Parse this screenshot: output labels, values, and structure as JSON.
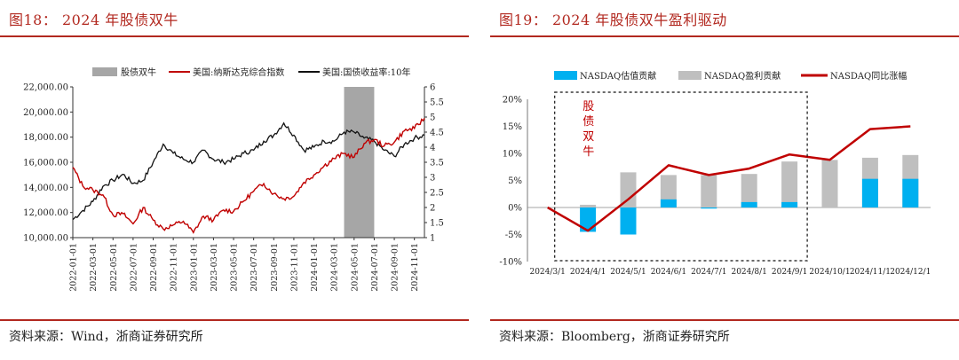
{
  "left": {
    "figure_title": "图18： 2024 年股债双牛",
    "source": "资料来源：Wind，浙商证券研究所",
    "legend": {
      "shade": "股债双牛",
      "nasdaq": "美国:纳斯达克综合指数",
      "treasury": "美国:国债收益率:10年"
    },
    "colors": {
      "nasdaq": "#c00000",
      "treasury": "#111111",
      "shade": "#a6a6a6"
    }
  },
  "right": {
    "figure_title": "图19： 2024 年股债双牛盈利驱动",
    "source": "资料来源：Bloomberg，浙商证券研究所",
    "legend": {
      "valuation": "NASDAQ估值贡献",
      "earnings": "NASDAQ盈利贡献",
      "yoy": "NASDAQ同比涨幅"
    },
    "annotation": "股债双牛",
    "colors": {
      "valuation": "#00b0f0",
      "earnings": "#bfbfbf",
      "yoy": "#c00000"
    }
  },
  "chart_data": [
    {
      "type": "line",
      "x_ticks": [
        "2022-01-01",
        "2022-03-01",
        "2022-05-01",
        "2022-07-01",
        "2022-09-01",
        "2022-11-01",
        "2023-01-01",
        "2023-03-01",
        "2023-05-01",
        "2023-07-01",
        "2023-09-01",
        "2023-11-01",
        "2024-01-01",
        "2024-03-01",
        "2024-05-01",
        "2024-07-01",
        "2024-09-01",
        "2024-11-01"
      ],
      "y_left_ticks": [
        "10,000.00",
        "12,000.00",
        "14,000.00",
        "16,000.00",
        "18,000.00",
        "20,000.00",
        "22,000.00"
      ],
      "y_left_range": [
        10000,
        22000
      ],
      "y_right_ticks": [
        "1",
        "1.5",
        "2",
        "2.5",
        "3",
        "3.5",
        "4",
        "4.5",
        "5",
        "5.5",
        "6"
      ],
      "y_right_range": [
        1,
        6
      ],
      "shaded_period": [
        "2024-04-01",
        "2024-07-01"
      ],
      "series": [
        {
          "name": "美国:纳斯达克综合指数",
          "axis": "left",
          "x": [
            "2022-01-01",
            "2022-02-01",
            "2022-03-01",
            "2022-04-01",
            "2022-05-01",
            "2022-06-01",
            "2022-07-01",
            "2022-08-01",
            "2022-09-01",
            "2022-10-01",
            "2022-11-01",
            "2022-12-01",
            "2023-01-01",
            "2023-02-01",
            "2023-03-01",
            "2023-04-01",
            "2023-05-01",
            "2023-06-01",
            "2023-07-01",
            "2023-08-01",
            "2023-09-01",
            "2023-10-01",
            "2023-11-01",
            "2023-12-01",
            "2024-01-01",
            "2024-02-01",
            "2024-03-01",
            "2024-04-01",
            "2024-05-01",
            "2024-06-01",
            "2024-07-01",
            "2024-08-01",
            "2024-09-01",
            "2024-10-01",
            "2024-11-01",
            "2024-12-01"
          ],
          "values": [
            15600,
            14100,
            13800,
            13400,
            11800,
            11900,
            11100,
            12400,
            11400,
            10700,
            11000,
            11300,
            10400,
            11700,
            11400,
            12200,
            12100,
            12900,
            13700,
            14300,
            13500,
            13100,
            13300,
            14400,
            15000,
            15700,
            16300,
            16700,
            16400,
            17500,
            17800,
            17300,
            17600,
            18500,
            18700,
            19500
          ]
        },
        {
          "name": "美国:国债收益率:10年",
          "axis": "right",
          "x": [
            "2022-01-01",
            "2022-02-01",
            "2022-03-01",
            "2022-04-01",
            "2022-05-01",
            "2022-06-01",
            "2022-07-01",
            "2022-08-01",
            "2022-09-01",
            "2022-10-01",
            "2022-11-01",
            "2022-12-01",
            "2023-01-01",
            "2023-02-01",
            "2023-03-01",
            "2023-04-01",
            "2023-05-01",
            "2023-06-01",
            "2023-07-01",
            "2023-08-01",
            "2023-09-01",
            "2023-10-01",
            "2023-11-01",
            "2023-12-01",
            "2024-01-01",
            "2024-02-01",
            "2024-03-01",
            "2024-04-01",
            "2024-05-01",
            "2024-06-01",
            "2024-07-01",
            "2024-08-01",
            "2024-09-01",
            "2024-10-01",
            "2024-11-01",
            "2024-12-01"
          ],
          "values": [
            1.6,
            1.9,
            2.2,
            2.7,
            2.9,
            3.1,
            2.8,
            2.9,
            3.5,
            4.1,
            3.8,
            3.6,
            3.5,
            3.9,
            3.6,
            3.5,
            3.6,
            3.8,
            3.9,
            4.2,
            4.4,
            4.8,
            4.4,
            3.9,
            4.0,
            4.2,
            4.2,
            4.5,
            4.5,
            4.3,
            4.2,
            3.9,
            3.7,
            4.1,
            4.3,
            4.4
          ]
        }
      ]
    },
    {
      "type": "bar",
      "categories": [
        "2024/3/1",
        "2024/4/1",
        "2024/5/1",
        "2024/6/1",
        "2024/7/1",
        "2024/8/1",
        "2024/9/1",
        "2024/10/1",
        "2024/11/1",
        "2024/12/1"
      ],
      "y_ticks": [
        "-10%",
        "-5%",
        "0%",
        "5%",
        "10%",
        "15%",
        "20%"
      ],
      "y_range": [
        -10,
        20
      ],
      "series": [
        {
          "name": "NASDAQ估值贡献",
          "type": "bar",
          "values": [
            0,
            -4.5,
            -5,
            1.5,
            -0.2,
            1,
            1,
            0,
            5.3,
            5.3
          ]
        },
        {
          "name": "NASDAQ盈利贡献",
          "type": "bar",
          "values": [
            0,
            0.5,
            6.5,
            6,
            6,
            6.2,
            8.5,
            8.8,
            9.2,
            9.7
          ]
        },
        {
          "name": "NASDAQ同比涨幅",
          "type": "line",
          "values": [
            0,
            -4.3,
            1.5,
            7.8,
            6,
            7.2,
            9.8,
            8.8,
            14.5,
            15
          ]
        }
      ]
    }
  ]
}
